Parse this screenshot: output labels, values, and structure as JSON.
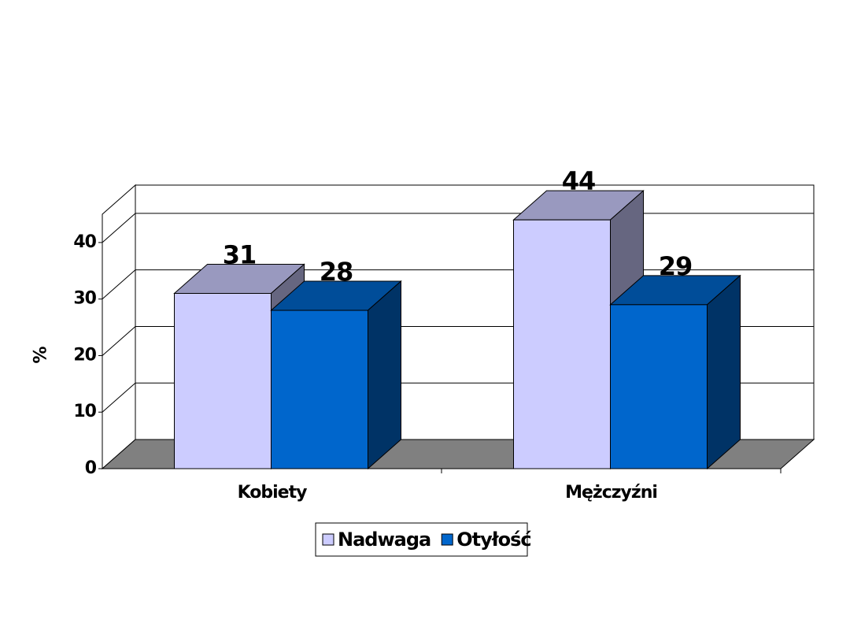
{
  "chart_data": {
    "type": "bar3d",
    "y_label": "%",
    "categories": [
      "Kobiety",
      "Mężczyźni"
    ],
    "series": [
      {
        "name": "Nadwaga",
        "color": "#ccccff",
        "values": [
          31,
          44
        ]
      },
      {
        "name": "Otyłość",
        "color": "#0066cc",
        "values": [
          28,
          29
        ]
      }
    ],
    "ylim": [
      0,
      45
    ],
    "yticks": [
      0,
      10,
      20,
      30,
      40
    ],
    "grid": true,
    "legend": "bottom"
  }
}
